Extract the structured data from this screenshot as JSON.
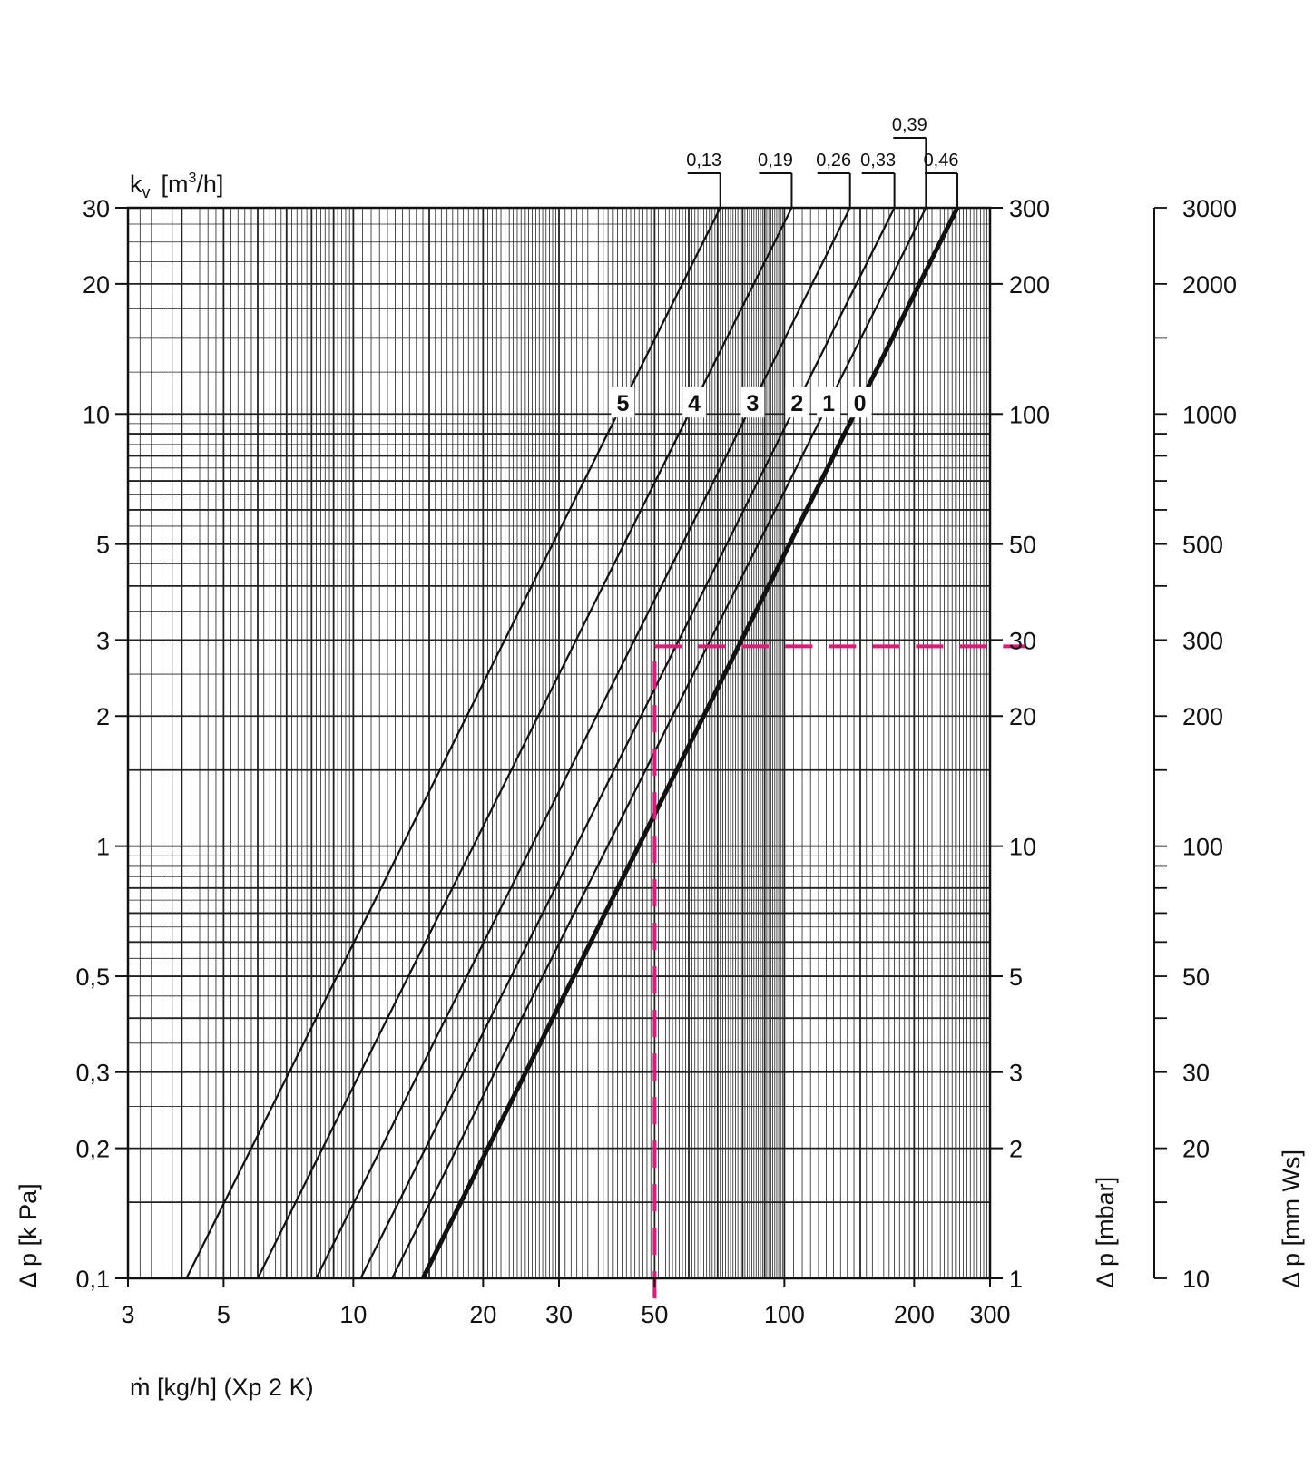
{
  "chart_data": {
    "type": "line",
    "title": "",
    "x_axis": {
      "label": "ṁ  [kg/h]  (Xp 2 K)",
      "scale": "log",
      "range": [
        3,
        300
      ],
      "ticks": [
        "3",
        "5",
        "10",
        "20",
        "30",
        "50",
        "100",
        "200",
        "300"
      ]
    },
    "y_axis_left": {
      "label": "Δ p [k Pa]",
      "scale": "log",
      "range": [
        0.1,
        30
      ],
      "ticks": [
        "0,1",
        "0,2",
        "0,3",
        "0,5",
        "1",
        "2",
        "3",
        "5",
        "10",
        "20",
        "30"
      ]
    },
    "y_axis_right_mbar": {
      "label": "Δ p [mbar]",
      "scale": "log",
      "range": [
        1,
        300
      ],
      "ticks": [
        "1",
        "2",
        "3",
        "5",
        "10",
        "20",
        "30",
        "50",
        "100",
        "200",
        "300"
      ]
    },
    "y_axis_right_mmws": {
      "label": "Δ p [mm Ws]",
      "scale": "log",
      "range": [
        10,
        3000
      ],
      "ticks": [
        "10",
        "20",
        "30",
        "50",
        "100",
        "200",
        "300",
        "500",
        "1000",
        "2000",
        "3000"
      ]
    },
    "kv_axis_label": {
      "base": "k",
      "sub": "v",
      "unit_pre": "[m",
      "sup": "3",
      "unit_post": "/h]"
    },
    "series": [
      {
        "name": "5",
        "kv": "0,13",
        "points": [
          [
            4.1,
            0.1
          ],
          [
            71,
            30
          ]
        ]
      },
      {
        "name": "4",
        "kv": "0,19",
        "points": [
          [
            6.0,
            0.1
          ],
          [
            104,
            30
          ]
        ]
      },
      {
        "name": "3",
        "kv": "0,26",
        "points": [
          [
            8.2,
            0.1
          ],
          [
            142,
            30
          ]
        ]
      },
      {
        "name": "2",
        "kv": "0,33",
        "points": [
          [
            10.4,
            0.1
          ],
          [
            180,
            30
          ]
        ]
      },
      {
        "name": "1",
        "kv": "0,39",
        "points": [
          [
            12.3,
            0.1
          ],
          [
            213,
            30
          ]
        ]
      },
      {
        "name": "0",
        "kv": "0,46",
        "points": [
          [
            14.5,
            0.1
          ],
          [
            252,
            30
          ]
        ]
      }
    ],
    "example_reading": {
      "x": 50,
      "y": 2.9,
      "color": "#e0187a"
    },
    "grid": true,
    "legend": "none"
  }
}
